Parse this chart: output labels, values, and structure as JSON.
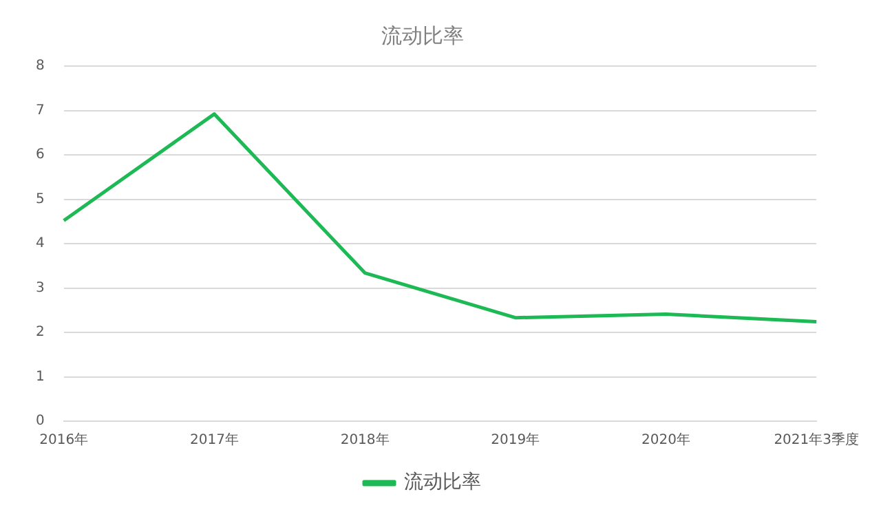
{
  "chart_data": {
    "type": "line",
    "title": "流动比率",
    "categories": [
      "2016年",
      "2017年",
      "2018年",
      "2019年",
      "2020年",
      "2021年3季度"
    ],
    "series": [
      {
        "name": "流动比率",
        "color": "#1db954",
        "values": [
          4.52,
          6.92,
          3.34,
          2.33,
          2.41,
          2.24
        ]
      }
    ],
    "ylim": [
      0,
      8
    ],
    "yticks": [
      0,
      1,
      2,
      3,
      4,
      5,
      6,
      7,
      8
    ],
    "grid": "y",
    "legend": "bottom",
    "marker": "none",
    "line_style": "solid"
  }
}
